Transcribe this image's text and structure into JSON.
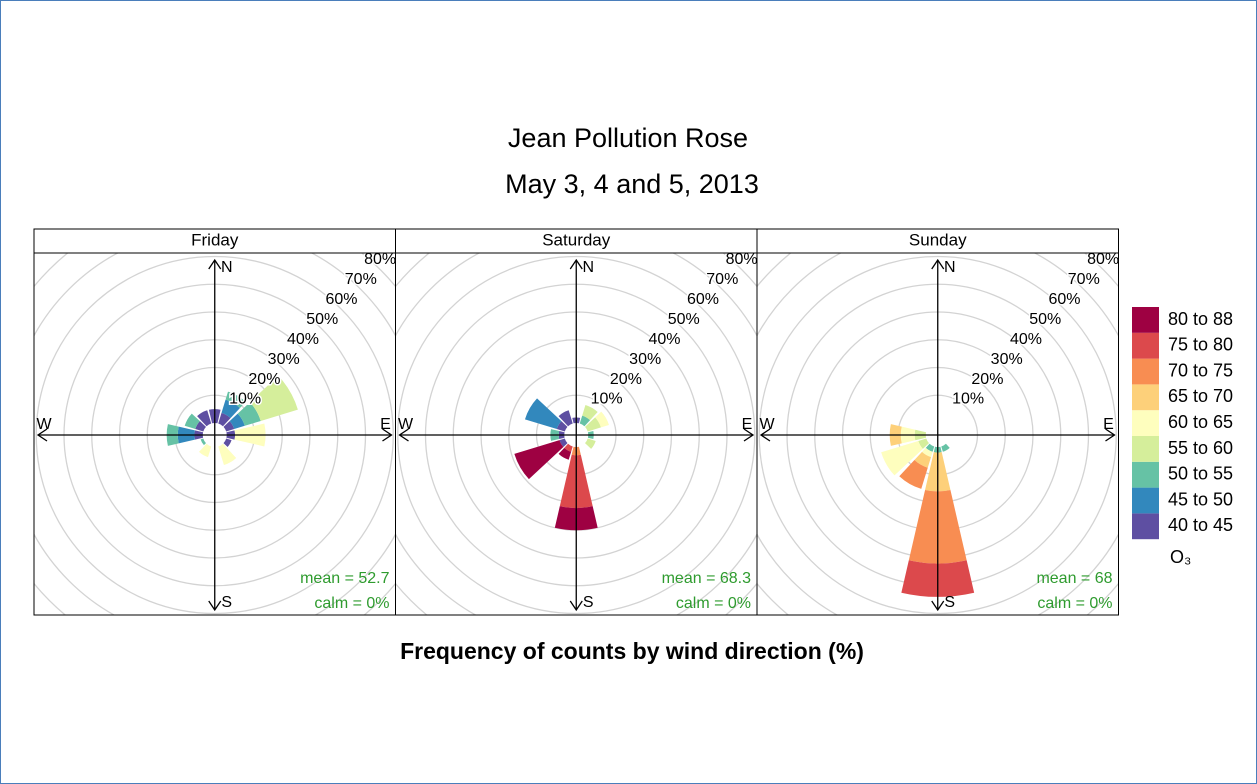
{
  "chart_data": {
    "type": "pollution_rose",
    "title": "Jean Pollution Rose",
    "subtitle": "May 3, 4 and 5, 2013",
    "xlabel": "Frequency of counts by wind direction (%)",
    "legend_title": "O₃",
    "panels": [
      "Friday",
      "Saturday",
      "Sunday"
    ],
    "means": [
      "mean = 52.7",
      "mean = 68.3",
      "mean = 68"
    ],
    "calms": [
      "calm = 0%",
      "calm = 0%",
      "calm = 0%"
    ],
    "compass": [
      "N",
      "E",
      "S",
      "W"
    ],
    "directions": [
      0,
      30,
      60,
      90,
      120,
      150,
      180,
      210,
      240,
      270,
      300,
      330
    ],
    "rlim": [
      0,
      80
    ],
    "rticks": [
      {
        "value": 10,
        "label": "10%"
      },
      {
        "value": 20,
        "label": "20%"
      },
      {
        "value": 30,
        "label": "30%"
      },
      {
        "value": 40,
        "label": "40%"
      },
      {
        "value": 50,
        "label": "50%"
      },
      {
        "value": 60,
        "label": "60%"
      },
      {
        "value": 70,
        "label": "70%"
      },
      {
        "value": 80,
        "label": "80%"
      }
    ],
    "series": [
      {
        "name": "40 to 45",
        "color": "#5E4FA2",
        "values": [
          [
            5,
            4,
            3,
            3,
            2,
            0,
            0,
            0,
            0,
            3,
            3,
            5
          ],
          [
            2,
            0,
            0,
            0,
            0,
            0,
            0,
            0,
            2,
            2,
            3,
            5
          ],
          [
            0,
            0,
            0,
            0,
            0,
            0,
            0,
            0,
            0,
            0,
            0,
            0
          ]
        ]
      },
      {
        "name": "45 to 50",
        "color": "#3288BD",
        "values": [
          [
            0,
            5,
            4,
            0,
            0,
            0,
            0,
            0,
            0,
            6,
            0,
            0
          ],
          [
            0,
            0,
            0,
            0,
            0,
            0,
            0,
            0,
            0,
            0,
            12,
            0
          ],
          [
            0,
            0,
            0,
            0,
            0,
            0,
            0,
            0,
            0,
            0,
            0,
            0
          ]
        ]
      },
      {
        "name": "50 to 55",
        "color": "#66C2A5",
        "values": [
          [
            0,
            3,
            6,
            0,
            0,
            0,
            0,
            0,
            1,
            4,
            4,
            0
          ],
          [
            0,
            3,
            0,
            2,
            0,
            0,
            0,
            0,
            0,
            3,
            0,
            0
          ],
          [
            0,
            0,
            0,
            0,
            0,
            2,
            2,
            2,
            0,
            0,
            0,
            0
          ]
        ]
      },
      {
        "name": "55 to 60",
        "color": "#D5EE9B",
        "values": [
          [
            0,
            0,
            14,
            0,
            0,
            0,
            0,
            0,
            0,
            0,
            0,
            0
          ],
          [
            0,
            4,
            5,
            0,
            3,
            0,
            0,
            0,
            0,
            0,
            0,
            0
          ],
          [
            0,
            0,
            0,
            0,
            0,
            0,
            0,
            0,
            3,
            4,
            0,
            0
          ]
        ]
      },
      {
        "name": "60 to 65",
        "color": "#FEFEBE",
        "values": [
          [
            0,
            0,
            0,
            11,
            0,
            7,
            0,
            4,
            0,
            0,
            0,
            0
          ],
          [
            0,
            0,
            3,
            0,
            0,
            0,
            0,
            0,
            0,
            0,
            0,
            0
          ],
          [
            0,
            0,
            0,
            0,
            0,
            0,
            0,
            2,
            14,
            5,
            0,
            0
          ]
        ]
      },
      {
        "name": "65 to 70",
        "color": "#FDD07A",
        "values": [
          [
            0,
            0,
            0,
            0,
            0,
            0,
            0,
            0,
            0,
            0,
            0,
            0
          ],
          [
            0,
            0,
            0,
            0,
            0,
            0,
            0,
            0,
            0,
            0,
            0,
            0
          ],
          [
            0,
            0,
            0,
            0,
            0,
            0,
            14,
            4,
            0,
            4,
            0,
            0
          ]
        ]
      },
      {
        "name": "70 to 75",
        "color": "#F88D52",
        "values": [
          [
            0,
            0,
            0,
            0,
            0,
            0,
            0,
            0,
            0,
            0,
            0,
            0
          ],
          [
            0,
            0,
            0,
            0,
            0,
            0,
            3,
            0,
            0,
            0,
            0,
            0
          ],
          [
            0,
            0,
            0,
            0,
            0,
            0,
            26,
            8,
            0,
            0,
            0,
            0
          ]
        ]
      },
      {
        "name": "75 to 80",
        "color": "#DC494C",
        "values": [
          [
            0,
            0,
            0,
            0,
            0,
            0,
            0,
            0,
            0,
            0,
            0,
            0
          ],
          [
            0,
            0,
            0,
            0,
            0,
            0,
            19,
            2,
            0,
            0,
            0,
            0
          ],
          [
            0,
            0,
            0,
            0,
            0,
            0,
            12,
            0,
            0,
            0,
            0,
            0
          ]
        ]
      },
      {
        "name": "80 to 88",
        "color": "#9E0142",
        "values": [
          [
            0,
            0,
            0,
            0,
            0,
            0,
            0,
            0,
            0,
            0,
            0,
            0
          ],
          [
            0,
            0,
            0,
            0,
            0,
            0,
            8,
            3,
            17,
            0,
            0,
            0
          ],
          [
            0,
            0,
            0,
            0,
            0,
            0,
            0,
            0,
            0,
            0,
            0,
            0
          ]
        ]
      }
    ]
  }
}
